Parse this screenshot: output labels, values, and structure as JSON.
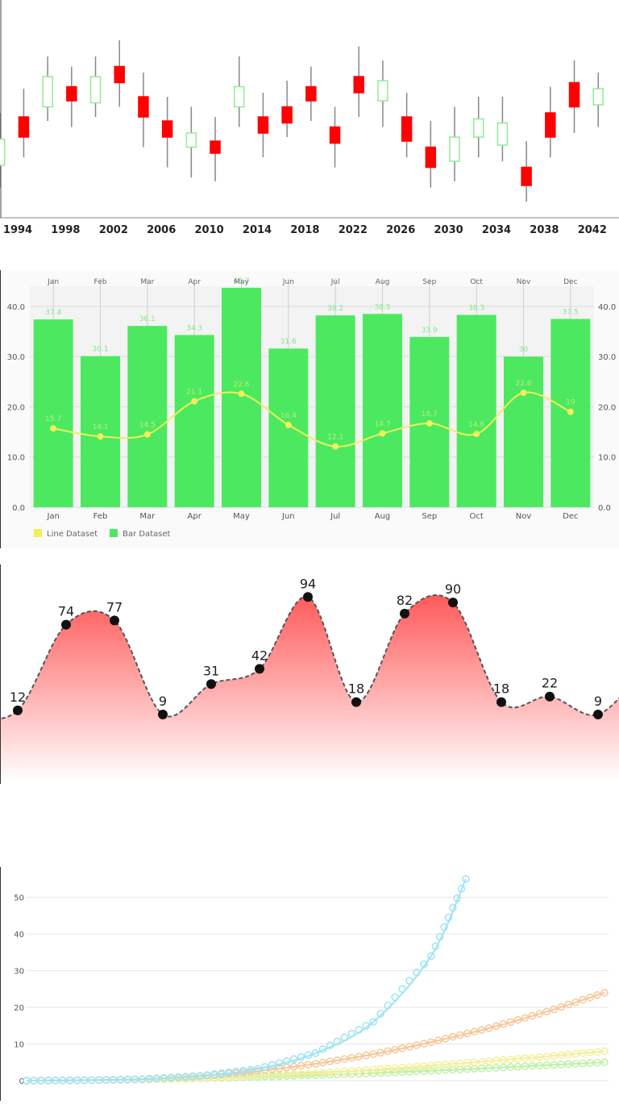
{
  "colors": {
    "candle_up_fill": "#ffffff",
    "candle_up_stroke": "#90ee90",
    "candle_down": "#ff0000",
    "bar_fill": "#4ce960",
    "combo_line": "#f2ee5a",
    "combo_label": "#b6ef7a",
    "area_top": "#ff5a5a",
    "area_bottom": "#ffffff",
    "area_line": "#555555",
    "growth_series": [
      "#9ee3f5",
      "#f5c79a",
      "#f3ef9e",
      "#bff0a8"
    ]
  },
  "chart_data": [
    {
      "type": "candlestick",
      "x_tick_labels": [
        "1994",
        "1998",
        "2002",
        "2006",
        "2010",
        "2014",
        "2018",
        "2022",
        "2026",
        "2030",
        "2034",
        "2038",
        "2042"
      ],
      "x_start": 1994,
      "x_step": 2,
      "ylim": [
        0,
        100
      ],
      "grid": false,
      "candles": [
        {
          "x": 1992.5,
          "open": 26,
          "close": 39,
          "high": 52,
          "low": 15
        },
        {
          "x": 1994.5,
          "open": 50,
          "close": 40,
          "high": 64,
          "low": 30
        },
        {
          "x": 1996.5,
          "open": 55,
          "close": 70,
          "high": 80,
          "low": 48
        },
        {
          "x": 1998.5,
          "open": 65,
          "close": 58,
          "high": 75,
          "low": 45
        },
        {
          "x": 2000.5,
          "open": 57,
          "close": 70,
          "high": 80,
          "low": 50
        },
        {
          "x": 2002.5,
          "open": 75,
          "close": 67,
          "high": 88,
          "low": 55
        },
        {
          "x": 2004.5,
          "open": 60,
          "close": 50,
          "high": 72,
          "low": 35
        },
        {
          "x": 2006.5,
          "open": 48,
          "close": 40,
          "high": 60,
          "low": 25
        },
        {
          "x": 2008.5,
          "open": 35,
          "close": 42,
          "high": 55,
          "low": 20
        },
        {
          "x": 2010.5,
          "open": 38,
          "close": 32,
          "high": 50,
          "low": 18
        },
        {
          "x": 2012.5,
          "open": 55,
          "close": 65,
          "high": 80,
          "low": 45
        },
        {
          "x": 2014.5,
          "open": 50,
          "close": 42,
          "high": 62,
          "low": 30
        },
        {
          "x": 2016.5,
          "open": 55,
          "close": 47,
          "high": 68,
          "low": 40
        },
        {
          "x": 2018.5,
          "open": 65,
          "close": 58,
          "high": 75,
          "low": 48
        },
        {
          "x": 2020.5,
          "open": 45,
          "close": 37,
          "high": 55,
          "low": 25
        },
        {
          "x": 2022.5,
          "open": 70,
          "close": 62,
          "high": 85,
          "low": 50
        },
        {
          "x": 2024.5,
          "open": 58,
          "close": 68,
          "high": 78,
          "low": 45
        },
        {
          "x": 2026.5,
          "open": 50,
          "close": 38,
          "high": 62,
          "low": 30
        },
        {
          "x": 2028.5,
          "open": 35,
          "close": 25,
          "high": 48,
          "low": 15
        },
        {
          "x": 2030.5,
          "open": 28,
          "close": 40,
          "high": 55,
          "low": 18
        },
        {
          "x": 2032.5,
          "open": 40,
          "close": 49,
          "high": 60,
          "low": 30
        },
        {
          "x": 2034.5,
          "open": 36,
          "close": 47,
          "high": 60,
          "low": 28
        },
        {
          "x": 2036.5,
          "open": 25,
          "close": 16,
          "high": 38,
          "low": 8
        },
        {
          "x": 2038.5,
          "open": 52,
          "close": 40,
          "high": 65,
          "low": 30
        },
        {
          "x": 2040.5,
          "open": 67,
          "close": 55,
          "high": 78,
          "low": 42
        },
        {
          "x": 2042.5,
          "open": 56,
          "close": 64,
          "high": 72,
          "low": 45
        }
      ]
    },
    {
      "type": "bar",
      "categories": [
        "Jan",
        "Feb",
        "Mar",
        "Apr",
        "May",
        "Jun",
        "Jul",
        "Aug",
        "Sep",
        "Oct",
        "Nov",
        "Dec"
      ],
      "series": [
        {
          "name": "Bar Dataset",
          "type": "bar",
          "values": [
            37.4,
            30.1,
            36.1,
            34.3,
            43.7,
            31.6,
            38.2,
            38.5,
            33.9,
            38.3,
            30.0,
            37.5
          ]
        },
        {
          "name": "Line Dataset",
          "type": "line",
          "values": [
            15.7,
            14.1,
            14.5,
            21.1,
            22.6,
            16.4,
            12.1,
            14.7,
            16.7,
            14.6,
            22.8,
            19.0
          ]
        }
      ],
      "y_tick_labels": [
        "0.0",
        "10.0",
        "20.0",
        "30.0",
        "40.0"
      ],
      "ylim": [
        0,
        44
      ],
      "grid": true,
      "legend": "bottom-left"
    },
    {
      "type": "area",
      "values": [
        12,
        74,
        77,
        9,
        31,
        42,
        94,
        18,
        82,
        90,
        18,
        22,
        9
      ],
      "labels": [
        "12",
        "74",
        "77",
        "9",
        "31",
        "42",
        "94",
        "18",
        "82",
        "90",
        "18",
        "22",
        "9"
      ],
      "ylim": [
        -40,
        100
      ],
      "grid": false
    },
    {
      "type": "line",
      "y_tick_labels": [
        "0",
        "10",
        "20",
        "30",
        "40",
        "50"
      ],
      "ylim": [
        0,
        55
      ],
      "xlim": [
        0,
        1
      ],
      "grid": true,
      "series": [
        {
          "x": [
            0,
            0.1,
            0.2,
            0.3,
            0.4,
            0.5,
            0.6,
            0.7,
            0.76
          ],
          "y": [
            0,
            0.1,
            0.4,
            1.3,
            3.2,
            7.5,
            16,
            34,
            55
          ]
        },
        {
          "x": [
            0,
            0.1,
            0.2,
            0.3,
            0.4,
            0.5,
            0.6,
            0.7,
            0.8,
            0.9,
            1.0
          ],
          "y": [
            0,
            0.1,
            0.4,
            1.2,
            2.6,
            4.6,
            7.2,
            10.5,
            14.3,
            18.8,
            24
          ]
        },
        {
          "x": [
            0,
            0.1,
            0.2,
            0.3,
            0.4,
            0.5,
            0.6,
            0.7,
            0.8,
            0.9,
            1.0
          ],
          "y": [
            0,
            0.1,
            0.3,
            0.7,
            1.3,
            2.0,
            3.0,
            4.1,
            5.3,
            6.6,
            8
          ]
        },
        {
          "x": [
            0,
            0.1,
            0.2,
            0.3,
            0.4,
            0.5,
            0.6,
            0.7,
            0.8,
            0.9,
            1.0
          ],
          "y": [
            0,
            0.1,
            0.3,
            0.6,
            1.0,
            1.5,
            2.0,
            2.7,
            3.4,
            4.2,
            5
          ]
        }
      ]
    }
  ]
}
